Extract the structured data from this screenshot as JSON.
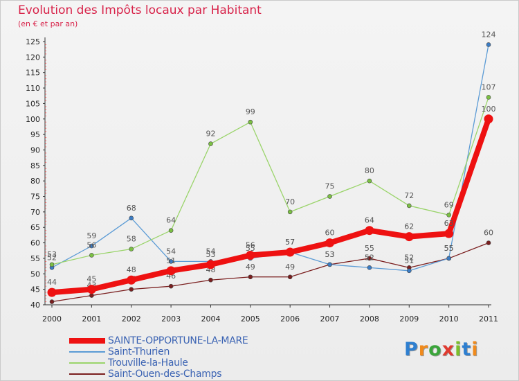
{
  "title": "Evolution des Impôts locaux par Habitant",
  "subtitle": "(en € et par an)",
  "logo": {
    "letters": [
      "P",
      "r",
      "o",
      "x",
      "i",
      "t",
      "i"
    ],
    "colors": [
      "#2e7fd0",
      "#f08a1c",
      "#3aa53a",
      "#e03a2f",
      "#7bbf2a",
      "#2e7fd0",
      "#f08a1c"
    ]
  },
  "chart_data": {
    "type": "line",
    "title": "Evolution des Impôts locaux par Habitant",
    "subtitle": "(en € et par an)",
    "xlabel": "",
    "ylabel": "",
    "x": [
      "2000",
      "2001",
      "2002",
      "2003",
      "2004",
      "2005",
      "2006",
      "2007",
      "2008",
      "2009",
      "2010",
      "2011"
    ],
    "ylim": [
      40,
      125
    ],
    "yticks": [
      40,
      45,
      50,
      55,
      60,
      65,
      70,
      75,
      80,
      85,
      90,
      95,
      100,
      105,
      110,
      115,
      120,
      125
    ],
    "grid": false,
    "legend_position": "bottom-left",
    "series": [
      {
        "name": "Saint-Ouen-des-Champs",
        "color": "#7a1e1e",
        "values": [
          41,
          43,
          45,
          46,
          48,
          49,
          49,
          53,
          55,
          52,
          55,
          60
        ],
        "emphasis": false
      },
      {
        "name": "Saint-Thurien",
        "color": "#5b9bd5",
        "marker_color": "#3b7cc4",
        "values": [
          52,
          59,
          68,
          54,
          54,
          55,
          57,
          53,
          52,
          51,
          55,
          124
        ],
        "emphasis": false
      },
      {
        "name": "Trouville-la-Haule",
        "color": "#9ad46a",
        "marker_color": "#7bc043",
        "values": [
          53,
          56,
          58,
          64,
          92,
          99,
          70,
          75,
          80,
          72,
          69,
          107
        ],
        "emphasis": false
      },
      {
        "name": "SAINTE-OPPORTUNE-LA-MARE",
        "color": "#ee1111",
        "values": [
          44,
          45,
          48,
          51,
          53,
          56,
          57,
          60,
          64,
          62,
          63,
          100
        ],
        "emphasis": true
      }
    ],
    "legend_order": [
      "SAINTE-OPPORTUNE-LA-MARE",
      "Saint-Thurien",
      "Trouville-la-Haule",
      "Saint-Ouen-des-Champs"
    ]
  }
}
